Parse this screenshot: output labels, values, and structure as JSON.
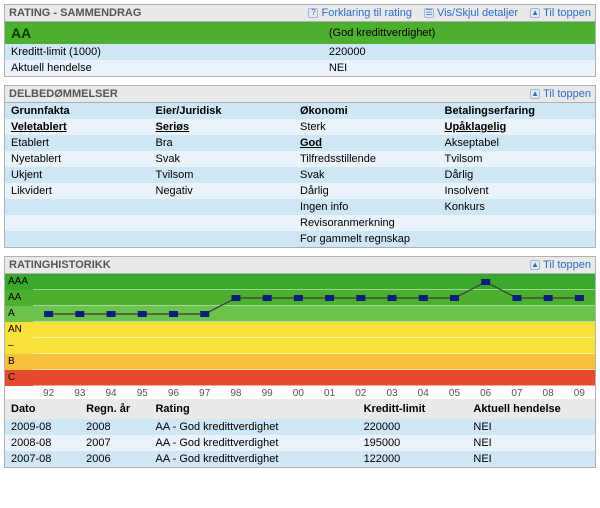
{
  "summary": {
    "title": "RATING - SAMMENDRAG",
    "links": {
      "explain": "Forklaring til rating",
      "details": "Vis/Skjul detaljer",
      "top": "Til toppen"
    },
    "rating_code": "AA",
    "rating_desc": "(God kredittverdighet)",
    "rows": [
      {
        "label": "Kreditt-limit (1000)",
        "value": "220000"
      },
      {
        "label": "Aktuell hendelse",
        "value": "NEI"
      }
    ]
  },
  "delbed": {
    "title": "DELBEDØMMELSER",
    "top_link": "Til toppen",
    "columns": [
      "Grunnfakta",
      "Eier/Juridisk",
      "Økonomi",
      "Betalingserfaring"
    ],
    "selected": [
      "Veletablert",
      "Seriøs",
      "God",
      "Upåklagelig"
    ],
    "grid": [
      [
        "Veletablert",
        "Seriøs",
        "Sterk",
        "Upåklagelig"
      ],
      [
        "Etablert",
        "Bra",
        "God",
        "Akseptabel"
      ],
      [
        "Nyetablert",
        "Svak",
        "Tilfredsstillende",
        "Tvilsom"
      ],
      [
        "Ukjent",
        "Tvilsom",
        "Svak",
        "Dårlig"
      ],
      [
        "Likvidert",
        "Negativ",
        "Dårlig",
        "Insolvent"
      ],
      [
        "",
        "",
        "Ingen info",
        "Konkurs"
      ],
      [
        "",
        "",
        "Revisoranmerkning",
        ""
      ],
      [
        "",
        "",
        "For gammelt regnskap",
        ""
      ]
    ]
  },
  "history": {
    "title": "RATINGHISTORIKK",
    "top_link": "Til toppen",
    "y_levels": [
      "AAA",
      "AA",
      "A",
      "AN",
      "–",
      "B",
      "C"
    ],
    "band_colors": {
      "AAA": "#3aa82e",
      "AA": "#4caf2e",
      "A": "#6bc24d",
      "AN": "#f7e13a",
      "DASH": "#f7e13a",
      "B": "#f7c23a",
      "C": "#e54b2c"
    },
    "x_labels": [
      "92",
      "93",
      "94",
      "95",
      "96",
      "97",
      "98",
      "99",
      "00",
      "01",
      "02",
      "03",
      "04",
      "05",
      "06",
      "07",
      "08",
      "09"
    ],
    "series": [
      {
        "x": 0,
        "level": "A"
      },
      {
        "x": 1,
        "level": "A"
      },
      {
        "x": 2,
        "level": "A"
      },
      {
        "x": 3,
        "level": "A"
      },
      {
        "x": 4,
        "level": "A"
      },
      {
        "x": 5,
        "level": "A"
      },
      {
        "x": 6,
        "level": "AA"
      },
      {
        "x": 7,
        "level": "AA"
      },
      {
        "x": 8,
        "level": "AA"
      },
      {
        "x": 9,
        "level": "AA"
      },
      {
        "x": 10,
        "level": "AA"
      },
      {
        "x": 11,
        "level": "AA"
      },
      {
        "x": 12,
        "level": "AA"
      },
      {
        "x": 13,
        "level": "AA"
      },
      {
        "x": 14,
        "level": "AAA"
      },
      {
        "x": 15,
        "level": "AA"
      },
      {
        "x": 16,
        "level": "AA"
      },
      {
        "x": 17,
        "level": "AA"
      }
    ],
    "marker_color": "#0a1e7a",
    "line_color": "#3a3a3a",
    "marker_size": 6,
    "columns": [
      "Dato",
      "Regn. år",
      "Rating",
      "Kreditt-limit",
      "Aktuell hendelse"
    ],
    "rows": [
      {
        "dato": "2009-08",
        "regn": "2008",
        "rating": "AA - God kredittverdighet",
        "limit": "220000",
        "hend": "NEI"
      },
      {
        "dato": "2008-08",
        "regn": "2007",
        "rating": "AA - God kredittverdighet",
        "limit": "195000",
        "hend": "NEI"
      },
      {
        "dato": "2007-08",
        "regn": "2006",
        "rating": "AA - God kredittverdighet",
        "limit": "122000",
        "hend": "NEI"
      }
    ]
  }
}
